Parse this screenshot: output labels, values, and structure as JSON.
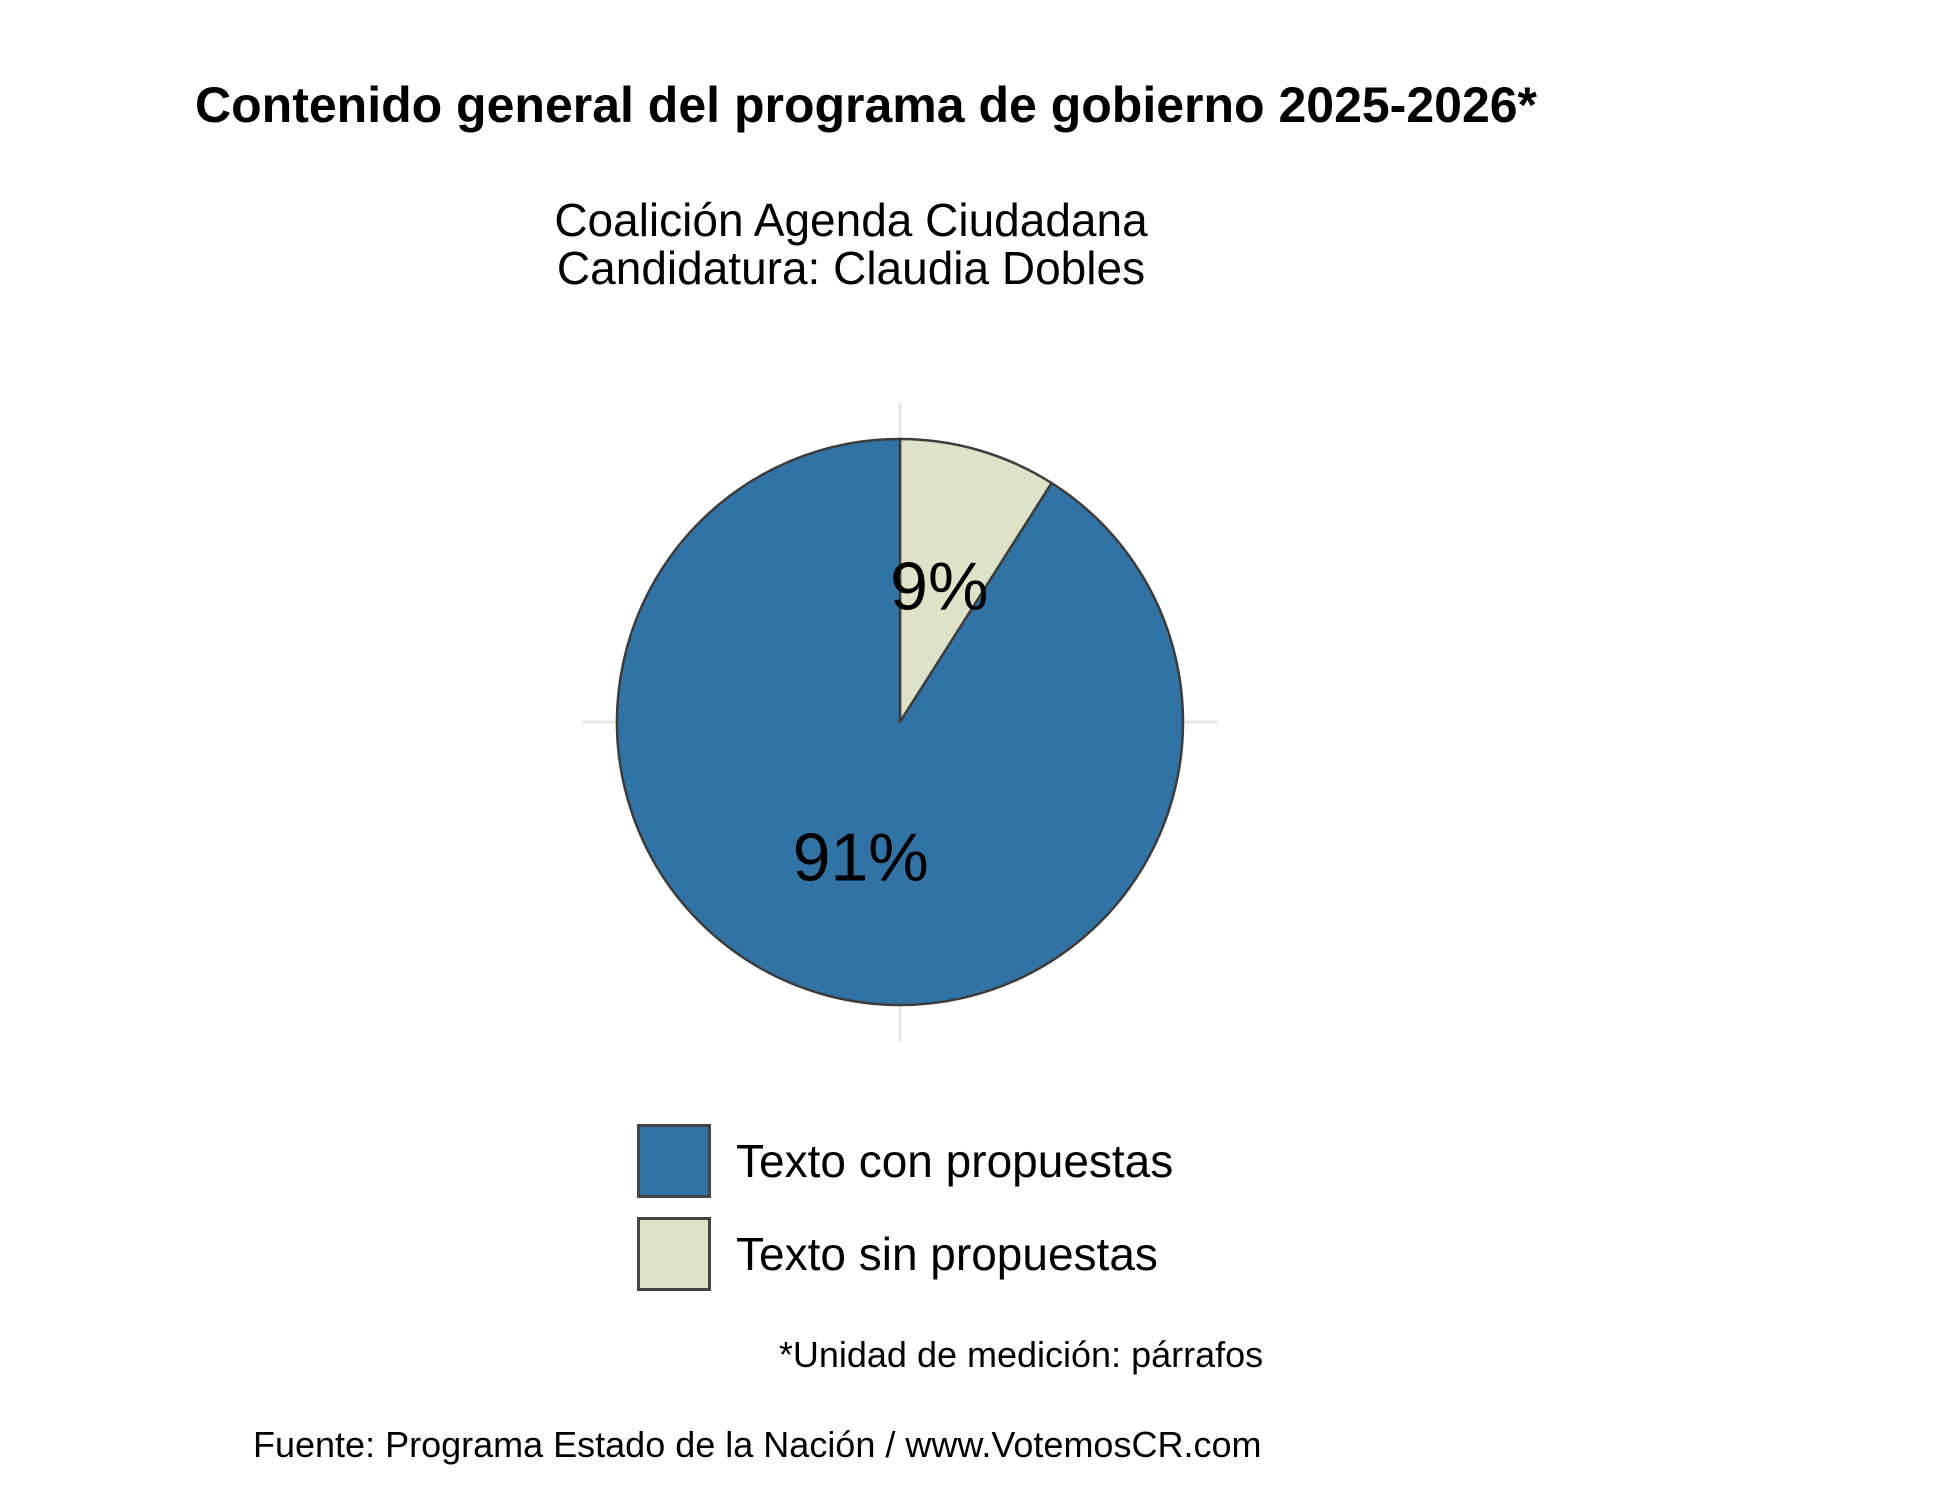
{
  "header": {
    "title": "Contenido general del programa de gobierno 2025-2026*",
    "subtitle_line1": "Coalición Agenda Ciudadana",
    "subtitle_line2": "Candidatura: Claudia Dobles"
  },
  "chart_data": {
    "type": "pie",
    "title": "Contenido general del programa de gobierno 2025-2026*",
    "subtitle": "Coalición Agenda Ciudadana / Candidatura: Claudia Dobles",
    "unit_note": "*Unidad de medición: párrafos",
    "slices": [
      {
        "label": "Texto con propuestas",
        "value": 91,
        "pct_label": "91%",
        "color": "#3273A6"
      },
      {
        "label": "Texto sin propuestas",
        "value": 9,
        "pct_label": "9%",
        "color": "#DDE2C8"
      }
    ],
    "start_angle_deg": 0,
    "direction": "clockwise",
    "stroke_color": "#3C3C3C",
    "grid": false,
    "legend_position": "bottom"
  },
  "legend": {
    "items": [
      {
        "label": "Texto con propuestas",
        "color": "#3273A6"
      },
      {
        "label": "Texto sin propuestas",
        "color": "#DDE2C8"
      }
    ]
  },
  "footer": {
    "footnote": "*Unidad de medición: párrafos",
    "source": "Fuente: Programa Estado de la Nación / www.VotemosCR.com"
  }
}
